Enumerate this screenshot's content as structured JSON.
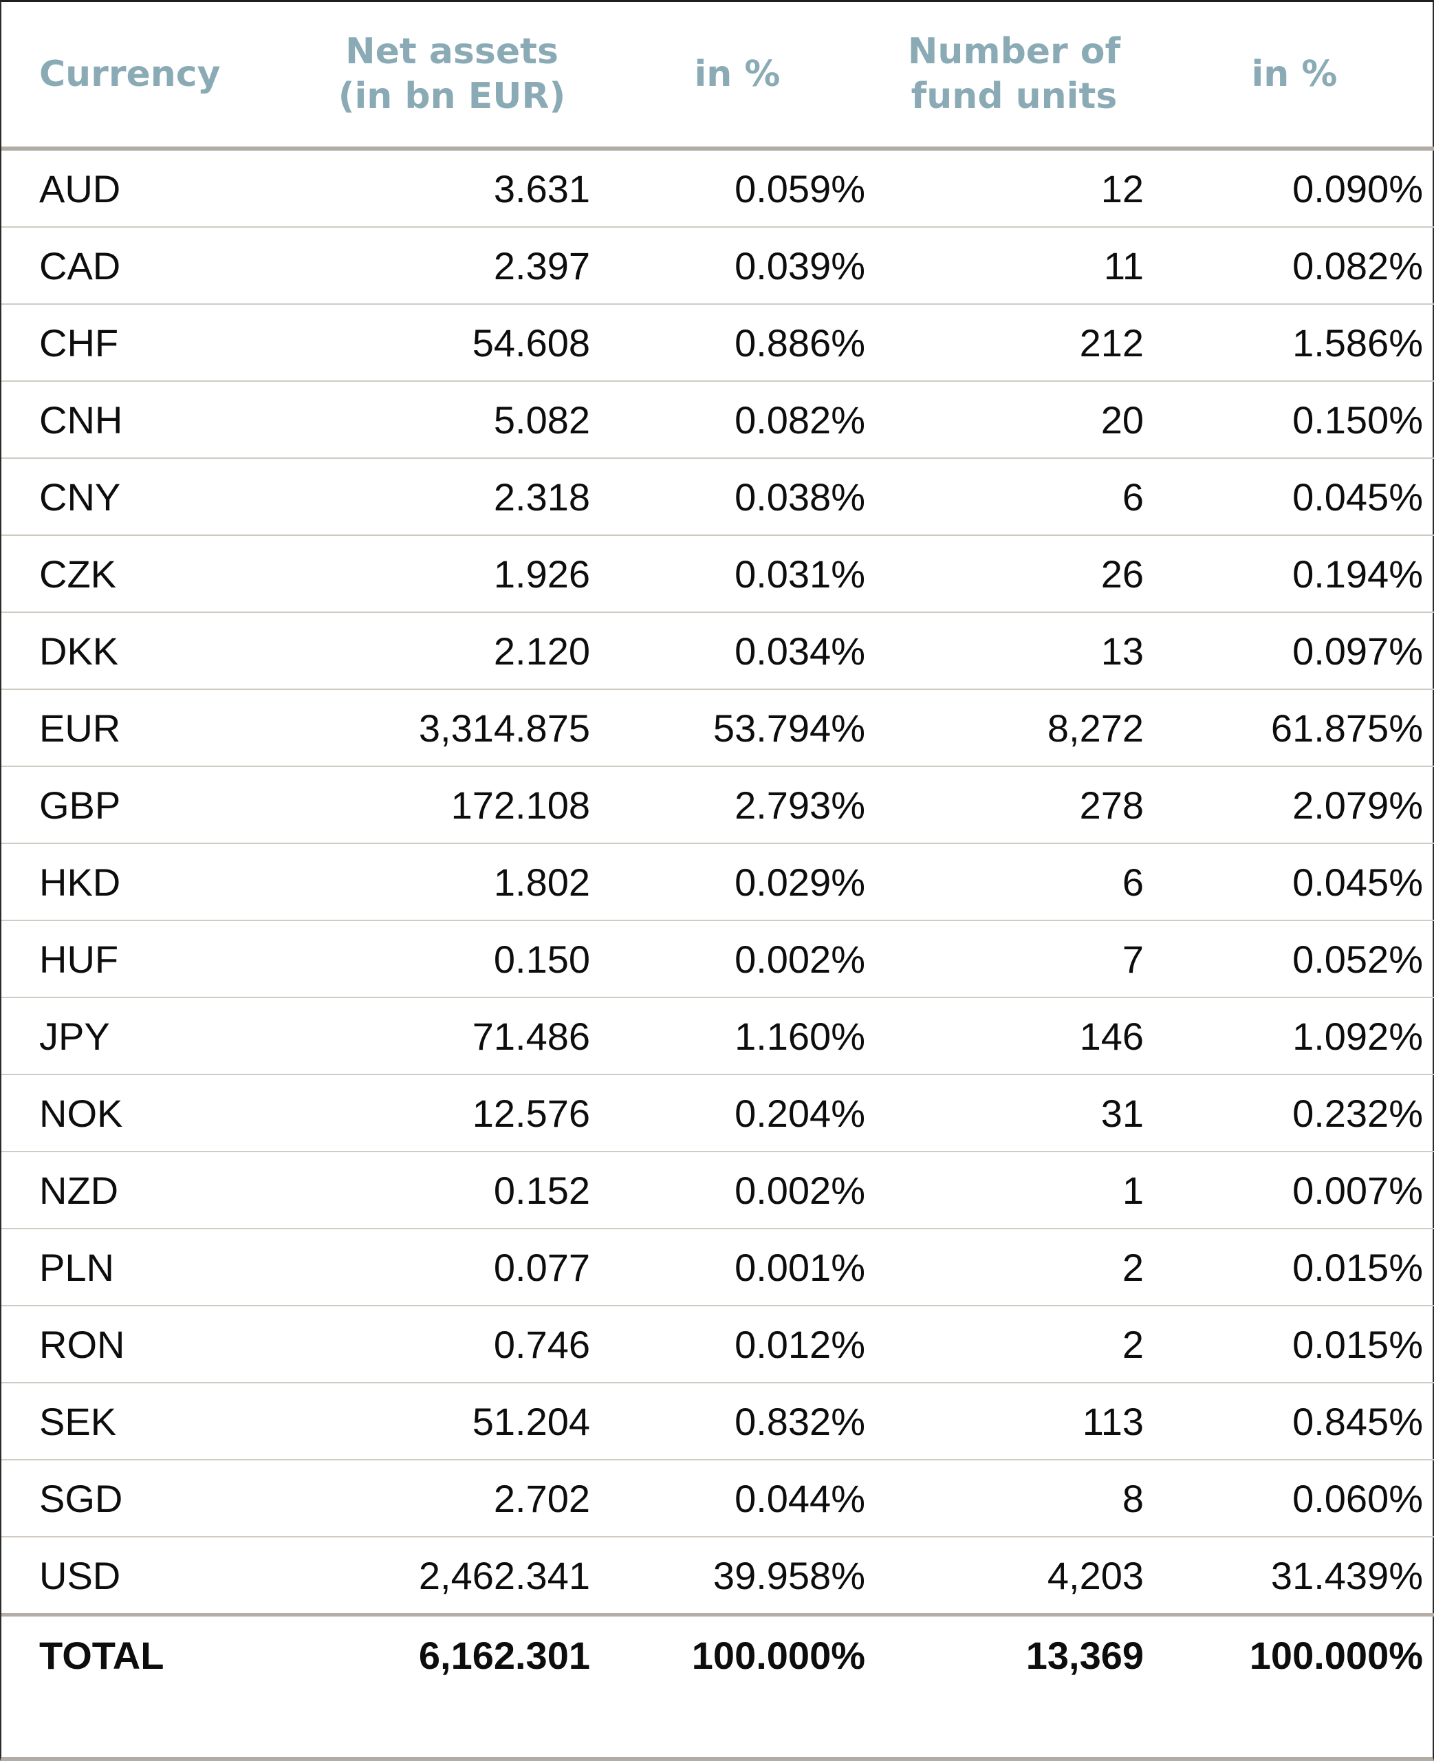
{
  "theme": {
    "header_text_color": "#8aabb5",
    "data_text_color": "#0d0d0d",
    "header_rule_color": "#b3aca4",
    "row_rule_color": "#d0cac3",
    "outer_border_color": "#1f1f1f",
    "background": "#ffffff"
  },
  "table": {
    "columns": [
      {
        "label": "Currency"
      },
      {
        "label": "Net assets\n(in bn EUR)"
      },
      {
        "label": "in %"
      },
      {
        "label": "Number of\nfund units"
      },
      {
        "label": "in %"
      }
    ],
    "rows": [
      {
        "currency": "AUD",
        "net_assets": "3.631",
        "net_assets_pct": "0.059%",
        "fund_units": "12",
        "fund_units_pct": "0.090%"
      },
      {
        "currency": "CAD",
        "net_assets": "2.397",
        "net_assets_pct": "0.039%",
        "fund_units": "11",
        "fund_units_pct": "0.082%"
      },
      {
        "currency": "CHF",
        "net_assets": "54.608",
        "net_assets_pct": "0.886%",
        "fund_units": "212",
        "fund_units_pct": "1.586%"
      },
      {
        "currency": "CNH",
        "net_assets": "5.082",
        "net_assets_pct": "0.082%",
        "fund_units": "20",
        "fund_units_pct": "0.150%"
      },
      {
        "currency": "CNY",
        "net_assets": "2.318",
        "net_assets_pct": "0.038%",
        "fund_units": "6",
        "fund_units_pct": "0.045%"
      },
      {
        "currency": "CZK",
        "net_assets": "1.926",
        "net_assets_pct": "0.031%",
        "fund_units": "26",
        "fund_units_pct": "0.194%"
      },
      {
        "currency": "DKK",
        "net_assets": "2.120",
        "net_assets_pct": "0.034%",
        "fund_units": "13",
        "fund_units_pct": "0.097%"
      },
      {
        "currency": "EUR",
        "net_assets": "3,314.875",
        "net_assets_pct": "53.794%",
        "fund_units": "8,272",
        "fund_units_pct": "61.875%"
      },
      {
        "currency": "GBP",
        "net_assets": "172.108",
        "net_assets_pct": "2.793%",
        "fund_units": "278",
        "fund_units_pct": "2.079%"
      },
      {
        "currency": "HKD",
        "net_assets": "1.802",
        "net_assets_pct": "0.029%",
        "fund_units": "6",
        "fund_units_pct": "0.045%"
      },
      {
        "currency": "HUF",
        "net_assets": "0.150",
        "net_assets_pct": "0.002%",
        "fund_units": "7",
        "fund_units_pct": "0.052%"
      },
      {
        "currency": "JPY",
        "net_assets": "71.486",
        "net_assets_pct": "1.160%",
        "fund_units": "146",
        "fund_units_pct": "1.092%"
      },
      {
        "currency": "NOK",
        "net_assets": "12.576",
        "net_assets_pct": "0.204%",
        "fund_units": "31",
        "fund_units_pct": "0.232%"
      },
      {
        "currency": "NZD",
        "net_assets": "0.152",
        "net_assets_pct": "0.002%",
        "fund_units": "1",
        "fund_units_pct": "0.007%"
      },
      {
        "currency": "PLN",
        "net_assets": "0.077",
        "net_assets_pct": "0.001%",
        "fund_units": "2",
        "fund_units_pct": "0.015%"
      },
      {
        "currency": "RON",
        "net_assets": "0.746",
        "net_assets_pct": "0.012%",
        "fund_units": "2",
        "fund_units_pct": "0.015%"
      },
      {
        "currency": "SEK",
        "net_assets": "51.204",
        "net_assets_pct": "0.832%",
        "fund_units": "113",
        "fund_units_pct": "0.845%"
      },
      {
        "currency": "SGD",
        "net_assets": "2.702",
        "net_assets_pct": "0.044%",
        "fund_units": "8",
        "fund_units_pct": "0.060%"
      },
      {
        "currency": "USD",
        "net_assets": "2,462.341",
        "net_assets_pct": "39.958%",
        "fund_units": "4,203",
        "fund_units_pct": "31.439%"
      }
    ],
    "total": {
      "currency": "TOTAL",
      "net_assets": "6,162.301",
      "net_assets_pct": "100.000%",
      "fund_units": "13,369",
      "fund_units_pct": "100.000%"
    }
  }
}
